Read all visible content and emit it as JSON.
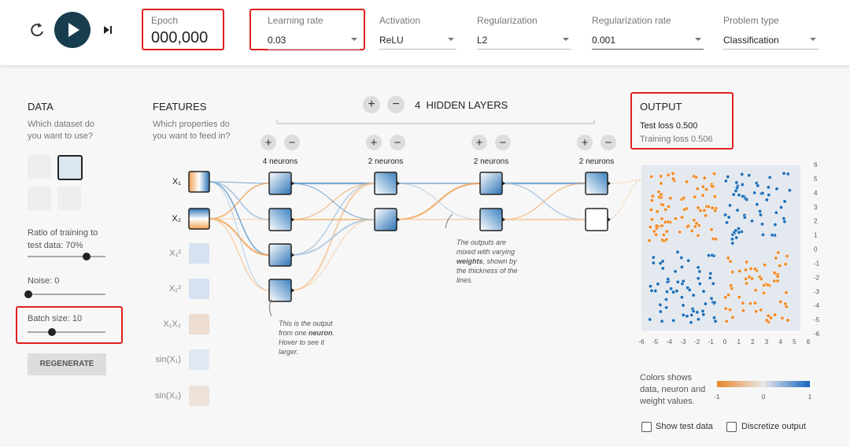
{
  "toolbar": {
    "epoch": {
      "label": "Epoch",
      "value": "000,000"
    },
    "dropdowns": [
      {
        "label": "Learning rate",
        "value": "0.03"
      },
      {
        "label": "Activation",
        "value": "ReLU"
      },
      {
        "label": "Regularization",
        "value": "L2"
      },
      {
        "label": "Regularization rate",
        "value": "0.001"
      },
      {
        "label": "Problem type",
        "value": "Classification"
      }
    ]
  },
  "data": {
    "title": "DATA",
    "question": "Which dataset do you want to use?",
    "ratio_label": "Ratio of training to test data:",
    "ratio_value": "70%",
    "noise_label": "Noise:",
    "noise_value": "0",
    "batch_label": "Batch size:",
    "batch_value": "10",
    "regenerate": "REGENERATE"
  },
  "features": {
    "title": "FEATURES",
    "question": "Which properties do you want to feed in?",
    "items": [
      "X₁",
      "X₂",
      "X₁²",
      "X₂²",
      "X₁X₂",
      "sin(X₁)",
      "sin(X₂)"
    ]
  },
  "network": {
    "hidden_count": "4",
    "hidden_label": "HIDDEN LAYERS",
    "layers": [
      "4 neurons",
      "2 neurons",
      "2 neurons",
      "2 neurons"
    ],
    "neuron_note": [
      "This is the output from one ",
      "neuron",
      ". Hover to see it larger."
    ],
    "weights_note": [
      "The outputs are mixed with varying ",
      "weights",
      ", shown by the thickness of the lines."
    ]
  },
  "output": {
    "title": "OUTPUT",
    "test_loss": "Test loss 0.500",
    "training_loss": "Training loss 0.506",
    "x_ticks": [
      -6,
      -5,
      -4,
      -3,
      -2,
      -1,
      0,
      1,
      2,
      3,
      4,
      5,
      6
    ],
    "y_ticks": [
      6,
      5,
      4,
      3,
      2,
      1,
      0,
      -1,
      -2,
      -3,
      -4,
      -5,
      -6
    ],
    "legend_text": "Colors shows data, neuron and weight values.",
    "scale_ticks": [
      -1,
      0,
      1
    ],
    "checkboxes": [
      "Show test data",
      "Discretize output"
    ]
  }
}
